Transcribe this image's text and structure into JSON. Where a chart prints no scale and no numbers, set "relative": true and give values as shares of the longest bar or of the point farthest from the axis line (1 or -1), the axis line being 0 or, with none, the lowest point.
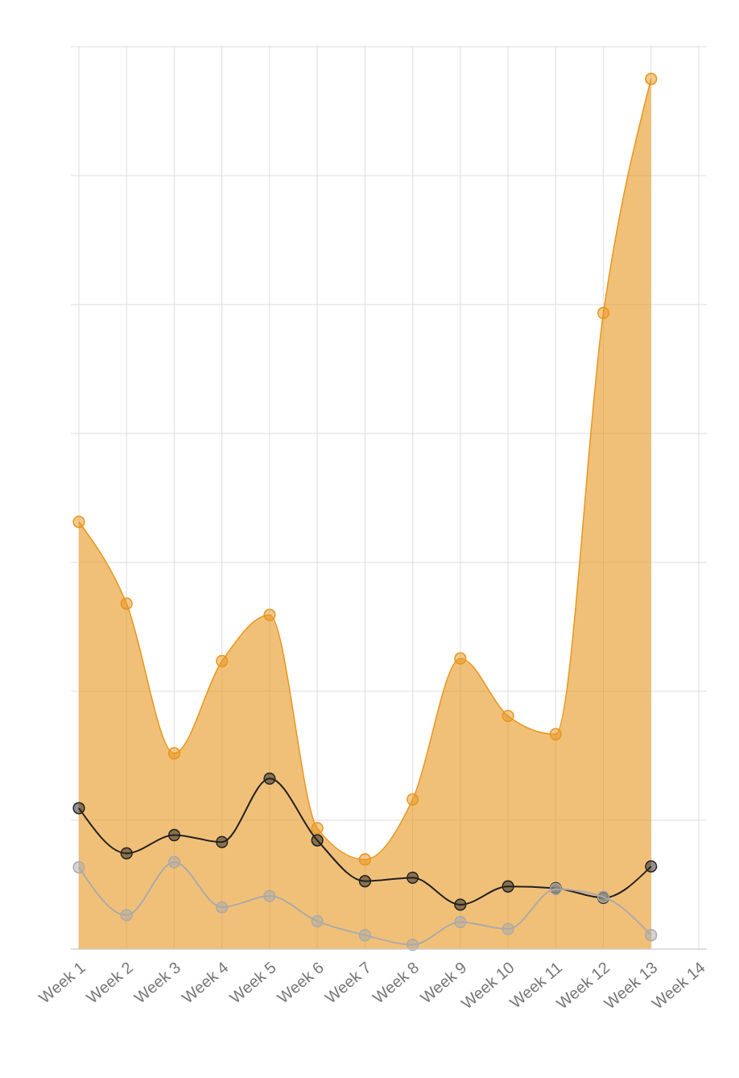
{
  "chart_data": {
    "type": "line",
    "relative": true,
    "grid": true,
    "marker": "circle",
    "categories": [
      "Week 1",
      "Week 2",
      "Week 3",
      "Week 4",
      "Week 5",
      "Week 6",
      "Week 7",
      "Week 8",
      "Week 9",
      "Week 10",
      "Week 11",
      "Week 12",
      "Week 13",
      "Week 14"
    ],
    "series": [
      {
        "type": "area",
        "color": "#e8961e",
        "values": [
          0.491,
          0.397,
          0.225,
          0.331,
          0.384,
          0.139,
          0.103,
          0.172,
          0.334,
          0.268,
          0.247,
          0.731,
          1,
          null
        ]
      },
      {
        "color": "#222222",
        "values": [
          0.162,
          0.11,
          0.131,
          0.123,
          0.196,
          0.125,
          0.078,
          0.082,
          0.051,
          0.072,
          0.07,
          0.059,
          0.095,
          null
        ]
      },
      {
        "color": "#aaaaaa",
        "values": [
          0.094,
          0.039,
          0.1,
          0.048,
          0.061,
          0.032,
          0.016,
          0.005,
          0.031,
          0.023,
          0.069,
          0.06,
          0.016,
          null
        ]
      }
    ]
  }
}
